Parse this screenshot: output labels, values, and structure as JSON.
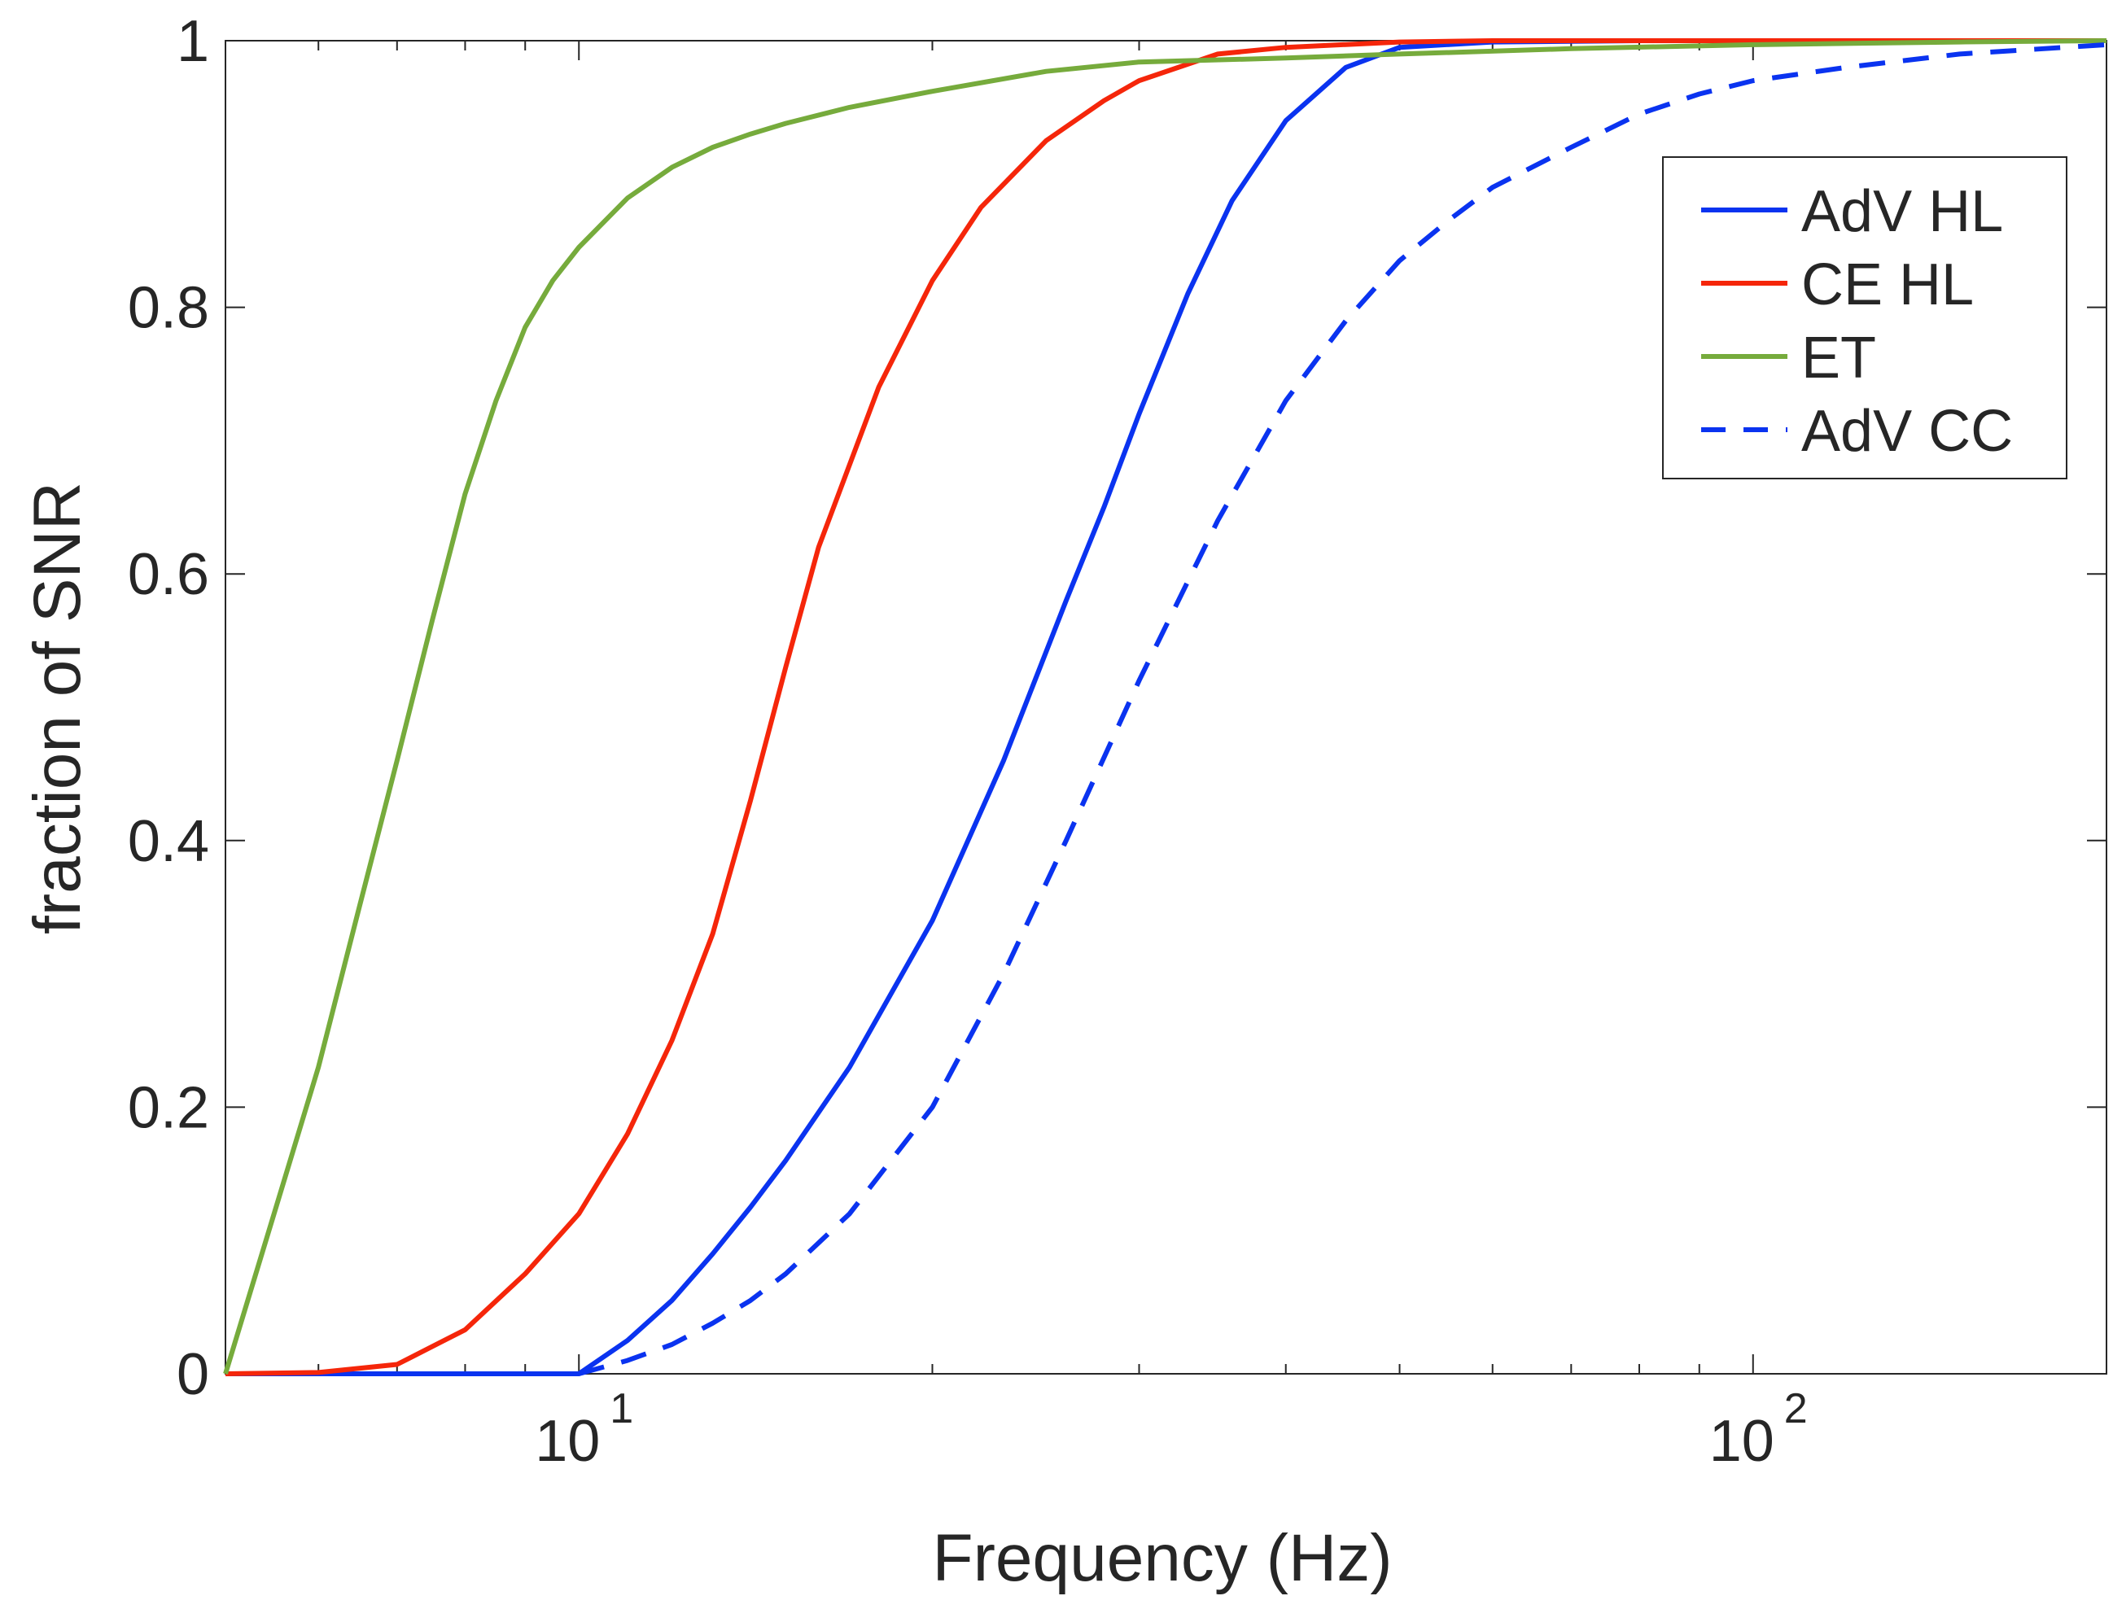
{
  "chart_data": {
    "type": "line",
    "title": "",
    "xlabel": "Frequency (Hz)",
    "ylabel": "fraction of SNR",
    "xscale": "log",
    "xlim": [
      5,
      200
    ],
    "ylim": [
      0,
      1
    ],
    "grid": false,
    "legend_position": "top-right",
    "yticks": [
      {
        "value": 0,
        "label": "0"
      },
      {
        "value": 0.2,
        "label": "0.2"
      },
      {
        "value": 0.4,
        "label": "0.4"
      },
      {
        "value": 0.6,
        "label": "0.6"
      },
      {
        "value": 0.8,
        "label": "0.8"
      },
      {
        "value": 1,
        "label": "1"
      }
    ],
    "xticks_major": [
      {
        "value": 10,
        "base": "10",
        "exp": "1"
      },
      {
        "value": 100,
        "base": "10",
        "exp": "2"
      }
    ],
    "xticks_minor": [
      6,
      7,
      8,
      9,
      20,
      30,
      40,
      50,
      60,
      70,
      80,
      90,
      200
    ],
    "series": [
      {
        "name": "AdV HL",
        "color": "#0a33f0",
        "dash": "solid",
        "x": [
          5,
          6,
          7,
          8,
          9,
          10,
          11,
          12,
          13,
          14,
          15,
          17,
          20,
          23,
          26,
          28,
          30,
          33,
          36,
          40,
          45,
          50,
          60,
          80,
          100,
          150,
          200
        ],
        "y": [
          0,
          0,
          0,
          0,
          0,
          0,
          0.025,
          0.055,
          0.09,
          0.125,
          0.16,
          0.23,
          0.34,
          0.46,
          0.58,
          0.65,
          0.72,
          0.81,
          0.88,
          0.94,
          0.98,
          0.995,
          0.999,
          1,
          1,
          1,
          1
        ]
      },
      {
        "name": "CE HL",
        "color": "#f5260a",
        "dash": "solid",
        "x": [
          5,
          6,
          7,
          8,
          9,
          10,
          11,
          12,
          13,
          14,
          15,
          16,
          18,
          20,
          22,
          25,
          28,
          30,
          35,
          40,
          50,
          60,
          100,
          200
        ],
        "y": [
          0,
          0.001,
          0.007,
          0.033,
          0.075,
          0.12,
          0.18,
          0.25,
          0.33,
          0.43,
          0.53,
          0.62,
          0.74,
          0.82,
          0.875,
          0.925,
          0.955,
          0.97,
          0.99,
          0.995,
          0.999,
          1,
          1,
          1
        ]
      },
      {
        "name": "ET",
        "color": "#76ab3c",
        "dash": "solid",
        "x": [
          5,
          5.5,
          6,
          6.5,
          7,
          7.5,
          8,
          8.5,
          9,
          9.5,
          10,
          11,
          12,
          13,
          14,
          15,
          17,
          20,
          25,
          30,
          40,
          50,
          70,
          100,
          150,
          200
        ],
        "y": [
          0,
          0.12,
          0.23,
          0.35,
          0.46,
          0.565,
          0.66,
          0.73,
          0.785,
          0.82,
          0.845,
          0.882,
          0.905,
          0.92,
          0.93,
          0.938,
          0.95,
          0.962,
          0.977,
          0.984,
          0.987,
          0.99,
          0.994,
          0.997,
          0.999,
          1
        ]
      },
      {
        "name": "AdV CC",
        "color": "#0a33f0",
        "dash": "dashed",
        "x": [
          10,
          11,
          12,
          13,
          14,
          15,
          17,
          20,
          23,
          26,
          30,
          35,
          40,
          45,
          50,
          55,
          60,
          70,
          80,
          90,
          100,
          120,
          150,
          200
        ],
        "y": [
          0,
          0.01,
          0.022,
          0.038,
          0.055,
          0.075,
          0.12,
          0.2,
          0.3,
          0.4,
          0.52,
          0.64,
          0.73,
          0.79,
          0.835,
          0.865,
          0.89,
          0.92,
          0.945,
          0.96,
          0.97,
          0.98,
          0.99,
          0.997
        ]
      }
    ]
  }
}
